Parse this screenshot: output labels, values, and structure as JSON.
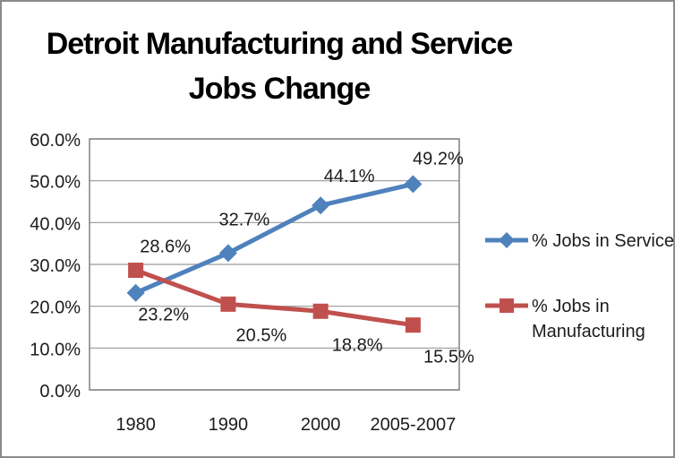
{
  "title": {
    "full": "Detroit Manufacturing and Service Jobs Change",
    "lines": [
      "Detroit Manufacturing and Service",
      "Jobs Change"
    ]
  },
  "chart_data": {
    "type": "line",
    "title": "Detroit Manufacturing and Service Jobs Change",
    "categories": [
      "1980",
      "1990",
      "2000",
      "2005-2007"
    ],
    "series": [
      {
        "name": "% Jobs in Service",
        "values": [
          23.2,
          32.7,
          44.1,
          49.2
        ],
        "point_labels": [
          "23.2%",
          "32.7%",
          "44.1%",
          "49.2%"
        ],
        "color": "#4F81BD",
        "marker": "diamond",
        "legend_lines": [
          "% Jobs in Service"
        ],
        "label_offsets": [
          [
            31,
            24
          ],
          [
            18,
            -38
          ],
          [
            32,
            -33
          ],
          [
            28,
            -29
          ]
        ]
      },
      {
        "name": "% Jobs in Manufacturing",
        "values": [
          28.6,
          20.5,
          18.8,
          15.5
        ],
        "point_labels": [
          "28.6%",
          "20.5%",
          "18.8%",
          "15.5%"
        ],
        "color": "#C0504D",
        "marker": "square",
        "legend_lines": [
          "% Jobs in",
          "Manufacturing"
        ],
        "label_offsets": [
          [
            33,
            -27
          ],
          [
            37,
            34
          ],
          [
            41,
            37
          ],
          [
            40,
            35
          ]
        ]
      }
    ],
    "y_axis": {
      "min": 0,
      "max": 60,
      "step": 10,
      "tick_labels": [
        "0.0%",
        "10.0%",
        "20.0%",
        "30.0%",
        "40.0%",
        "50.0%",
        "60.0%"
      ]
    },
    "x_axis": {
      "tick_labels": [
        "1980",
        "1990",
        "2000",
        "2005-2007"
      ]
    },
    "ylim": [
      0,
      60
    ],
    "grid": true,
    "legend_position": "right-middle",
    "style": {
      "background": "#ffffff",
      "frame_border_color": "#8a8a8a",
      "grid_color": "#999999",
      "plot_border_color": "#808080",
      "text_color": "#1c1c1c",
      "title_color": "#000000"
    }
  }
}
